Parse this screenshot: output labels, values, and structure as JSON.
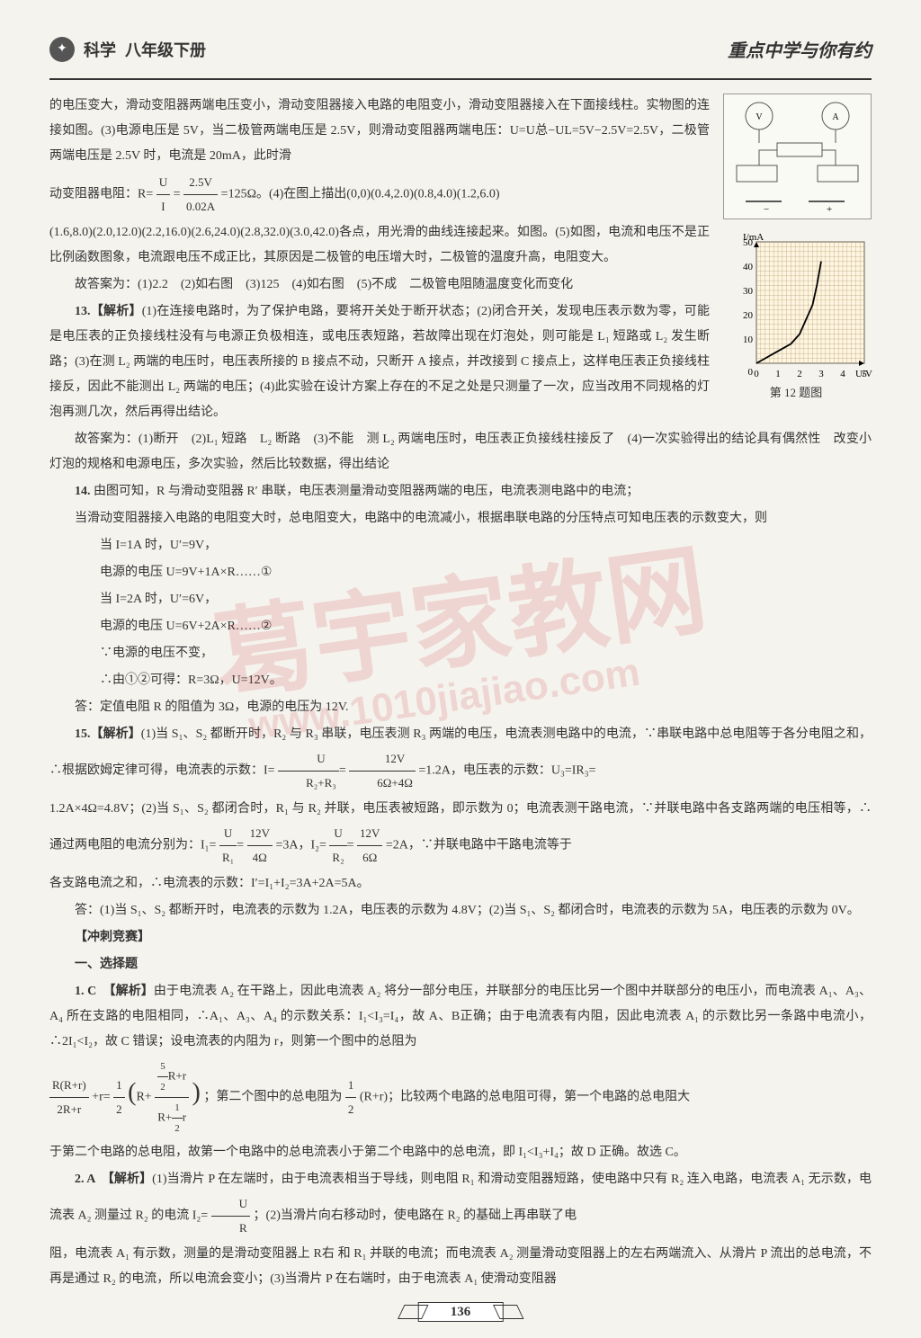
{
  "header": {
    "subject": "科学",
    "grade": "八年级下册",
    "series": "重点中学与你有约"
  },
  "content": {
    "p1": "的电压变大，滑动变阻器两端电压变小，滑动变阻器接入电路的电阻变小，滑动变阻器接入在下面接线柱。实物图的连接如图。(3)电源电压是 5V，当二极管两端电压是 2.5V，则滑动变阻器两端电压：U=U总−UL=5V−2.5V=2.5V，二极管两端电压是 2.5V 时，电流是 20mA，此时滑",
    "p2a": "动变阻器电阻：R=",
    "p2b": "=125Ω。(4)在图上描出(0,0)(0.4,2.0)(0.8,4.0)(1.2,6.0)",
    "p3": "(1.6,8.0)(2.0,12.0)(2.2,16.0)(2.6,24.0)(2.8,32.0)(3.0,42.0)各点，用光滑的曲线连接起来。如图。(5)如图，电流和电压不是正比例函数图象，电流跟电压不成正比，其原因是二极管的电压增大时，二极管的温度升高，电阻变大。",
    "p4": "故答案为：(1)2.2　(2)如右图　(3)125　(4)如右图　(5)不成　二极管电阻随温度变化而变化",
    "p5": "13.【解析】(1)在连接电路时，为了保护电路，要将开关处于断开状态；(2)闭合开关，发现电压表示数为零，可能是电压表的正负接线柱没有与电源正负极相连，或电压表短路，若故障出现在灯泡处，则可能是 L₁ 短路或 L₂ 发生断路；(3)在测 L₂ 两端的电压时，电压表所接的 B 接点不动，只断开 A 接点，并改接到 C 接点上，这样电压表正负接线柱接反，因此不能测出 L₂ 两端的电压；(4)此实验在设计方案上存在的不足之处是只测量了一次，应当改用不同规格的灯泡再测几次，然后再得出结论。",
    "p6": "故答案为：(1)断开　(2)L₁ 短路　L₂ 断路　(3)不能　测 L₂ 两端电压时，电压表正负接线柱接反了　(4)一次实验得出的结论具有偶然性　改变小灯泡的规格和电源电压，多次实验，然后比较数据，得出结论",
    "p7": "14. 由图可知，R 与滑动变阻器 R′ 串联，电压表测量滑动变阻器两端的电压，电流表测电路中的电流；",
    "p8": "当滑动变阻器接入电路的电阻变大时，总电阻变大，电路中的电流减小，根据串联电路的分压特点可知电压表的示数变大，则",
    "p9": "当 I=1A 时，U′=9V，",
    "p10": "电源的电压 U=9V+1A×R……①",
    "p11": "当 I=2A 时，U′=6V，",
    "p12": "电源的电压 U=6V+2A×R……②",
    "p13": "∵电源的电压不变，",
    "p14": "∴由①②可得：R=3Ω，U=12V。",
    "p15": "答：定值电阻 R 的阻值为 3Ω，电源的电压为 12V.",
    "p16a": "15.【解析】(1)当 S₁、S₂ 都断开时，R₂ 与 R₃ 串联，电压表测 R₃ 两端的电压，电流表测电路中的电流，∵串联电路中总电阻等于各分电阻之和，∴根据欧姆定律可得，电流表的示数：I=",
    "p16b": "=1.2A，电压表的示数：U₃=IR₃=",
    "p17a": "1.2A×4Ω=4.8V；(2)当 S₁、S₂ 都闭合时，R₁ 与 R₂ 并联，电压表被短路，即示数为 0；电流表测干路电流，∵并联电路中各支路两端的电压相等，∴通过两电阻的电流分别为：I₁=",
    "p17b": "=3A，I₂=",
    "p17c": "=2A，∵并联电路中干路电流等于",
    "p18": "各支路电流之和，∴电流表的示数：I′=I₁+I₂=3A+2A=5A。",
    "p19": "答：(1)当 S₁、S₂ 都断开时，电流表的示数为 1.2A，电压表的示数为 4.8V；(2)当 S₁、S₂ 都闭合时，电流表的示数为 5A，电压表的示数为 0V。",
    "section1": "【冲刺竞赛】",
    "section2": "一、选择题",
    "p20": "1. C　【解析】由于电流表 A₂ 在干路上，因此电流表 A₂ 将分一部分电压，并联部分的电压比另一个图中并联部分的电压小，而电流表 A₁、A₃、A₄ 所在支路的电阻相同，∴A₁、A₃、A₄ 的示数关系：I₁<I₃=I₄，故 A、B正确；由于电流表有内阻，因此电流表 A₁ 的示数比另一条路中电流小，∴2I₁<I₂，故 C 错误；设电流表的内阻为 r，则第一个图中的总阻为",
    "p21b": "；第二个图中的总电阻为",
    "p21c": "(R+r)；比较两个电路的总电阻可得，第一个电路的总电阻大",
    "p22": "于第二个电路的总电阻，故第一个电路中的总电流表小于第二个电路中的总电流，即 I₁<I₃+I₄；故 D 正确。故选 C。",
    "p23a": "2. A　【解析】(1)当滑片 P 在左端时，由于电流表相当于导线，则电阻 R₁ 和滑动变阻器短路，使电路中只有 R₂ 连入电路，电流表 A₁ 无示数，电流表 A₂ 测量过 R₂ 的电流 I₂=",
    "p23b": "；(2)当滑片向右移动时，使电路在 R₂ 的基础上再串联了电",
    "p24": "阻，电流表 A₁ 有示数，测量的是滑动变阻器上 R右 和 R₁ 并联的电流；而电流表 A₂ 测量滑动变阻器上的左右两端流入、从滑片 P 流出的总电流，不再是通过 R₂ 的电流，所以电流会变小；(3)当滑片 P 在右端时，由于电流表 A₁ 使滑动变阻器"
  },
  "fractions": {
    "f1_num": "U",
    "f1_den": "I",
    "f2_num": "2.5V",
    "f2_den": "0.02A",
    "f3_num": "U",
    "f3_den": "R₂+R₃",
    "f4_num": "12V",
    "f4_den": "6Ω+4Ω",
    "f5_num": "U",
    "f5_den": "R₁",
    "f6_num": "12V",
    "f6_den": "4Ω",
    "f7_num": "U",
    "f7_den": "R₂",
    "f8_num": "12V",
    "f8_den": "6Ω",
    "f9_num": "R(R+r)",
    "f9_den": "2R+r",
    "f10_num": "1",
    "f10_den": "2",
    "f11_top": "5",
    "f11_top2": "2",
    "f11_mid1": "R+r",
    "f11_bot": "1",
    "f11_bot2": "2",
    "f11_mid2": "r",
    "f12_num": "1",
    "f12_den": "2",
    "f13_num": "U",
    "f13_den": "R"
  },
  "chart": {
    "ylabel": "I/mA",
    "xlabel": "U/V",
    "caption": "第 12 题图",
    "xlim": [
      0,
      5
    ],
    "ylim": [
      0,
      50
    ],
    "xticks": [
      0,
      1,
      2,
      3,
      4,
      5
    ],
    "yticks": [
      0,
      10,
      20,
      30,
      40,
      50
    ],
    "curve_points": [
      [
        0,
        0
      ],
      [
        0.4,
        2
      ],
      [
        0.8,
        4
      ],
      [
        1.2,
        6
      ],
      [
        1.6,
        8
      ],
      [
        2.0,
        12
      ],
      [
        2.2,
        16
      ],
      [
        2.6,
        24
      ],
      [
        2.8,
        32
      ],
      [
        3.0,
        42
      ]
    ],
    "background_color": "#fff5e0",
    "grid_color": "#b8a880",
    "line_color": "#000000",
    "axis_fontsize": 11
  },
  "circuit": {
    "label": "电路实物图"
  },
  "watermark": {
    "text": "葛宇家教网",
    "url": "www.1010jiajiao.com"
  },
  "page_number": "136"
}
